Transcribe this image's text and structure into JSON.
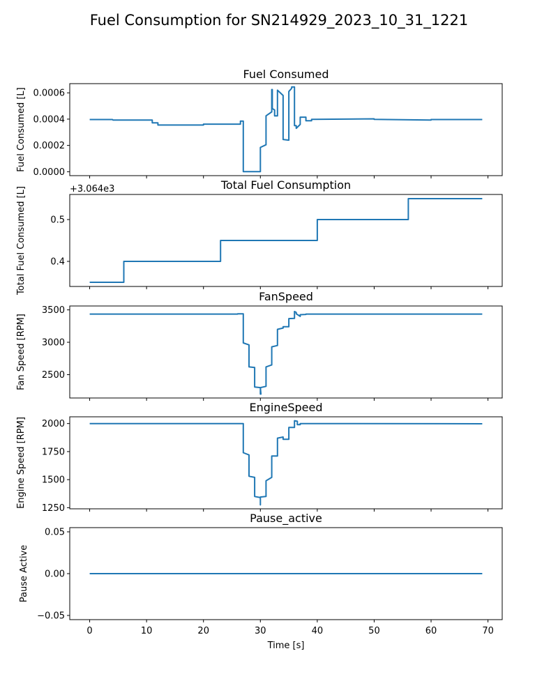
{
  "figure": {
    "title": "Fuel Consumption for SN214929_2023_10_31_1221",
    "xlabel": "Time [s]"
  },
  "chart_data": [
    {
      "type": "line",
      "title": "Fuel Consumed",
      "ylabel": "Fuel Consumed [L]",
      "xlim": [
        -3.5,
        72.5
      ],
      "ylim": [
        -3e-05,
        0.00067
      ],
      "yticks": [
        0.0,
        0.0002,
        0.0004,
        0.0006
      ],
      "ytick_labels": [
        "0.0000",
        "0.0002",
        "0.0004",
        "0.0006"
      ],
      "offset_label": "",
      "color": "#1f77b4",
      "x": [
        0,
        4,
        4.1,
        11,
        11,
        12,
        12,
        20,
        20,
        26.5,
        26.5,
        27,
        27,
        30,
        30,
        31,
        31,
        32,
        32,
        32.1,
        32.1,
        32.5,
        32.5,
        33,
        33,
        34,
        34,
        35,
        35,
        35.5,
        35.5,
        36,
        36,
        36.3,
        36.3,
        37,
        37,
        38,
        38,
        39,
        39,
        50,
        50,
        60,
        60,
        69
      ],
      "y": [
        0.000397,
        0.000397,
        0.000393,
        0.000393,
        0.000372,
        0.000372,
        0.000355,
        0.000355,
        0.000362,
        0.000362,
        0.000385,
        0.000385,
        0.0,
        0.0,
        0.000185,
        0.000205,
        0.000425,
        0.000455,
        0.000625,
        0.000625,
        0.00048,
        0.00047,
        0.000425,
        0.000425,
        0.00062,
        0.00058,
        0.000245,
        0.00024,
        0.00061,
        0.000635,
        0.000645,
        0.000645,
        0.00035,
        0.00035,
        0.00033,
        0.00036,
        0.000415,
        0.000415,
        0.000388,
        0.000388,
        0.000398,
        0.000402,
        0.000398,
        0.000393,
        0.000397,
        0.000397
      ]
    },
    {
      "type": "line",
      "title": "Total Fuel Consumption",
      "ylabel": "Total Fuel Consumed [L]",
      "xlim": [
        -3.5,
        72.5
      ],
      "ylim": [
        0.34,
        0.56
      ],
      "yticks": [
        0.4,
        0.5
      ],
      "ytick_labels": [
        "0.4",
        "0.5"
      ],
      "offset_label": "+3.064e3",
      "color": "#1f77b4",
      "x": [
        0,
        6,
        6,
        23,
        23,
        40,
        40,
        56,
        56,
        69
      ],
      "y": [
        0.35,
        0.35,
        0.4,
        0.4,
        0.45,
        0.45,
        0.5,
        0.5,
        0.55,
        0.55
      ]
    },
    {
      "type": "line",
      "title": "FanSpeed",
      "ylabel": "Fan Speed [RPM]",
      "xlim": [
        -3.5,
        72.5
      ],
      "ylim": [
        2140,
        3560
      ],
      "yticks": [
        2500,
        3000,
        3500
      ],
      "ytick_labels": [
        "2500",
        "3000",
        "3500"
      ],
      "offset_label": "",
      "color": "#1f77b4",
      "x": [
        0,
        26,
        26,
        27,
        27,
        28,
        28,
        29,
        29,
        30,
        30,
        30.1,
        30,
        31,
        31,
        32,
        32,
        33,
        33,
        34,
        34,
        35,
        35,
        36,
        36,
        36.3,
        36.3,
        37,
        37,
        38,
        38,
        69
      ],
      "y": [
        3435,
        3435,
        3440,
        3440,
        2990,
        2960,
        2620,
        2610,
        2310,
        2300,
        2200,
        2200,
        2300,
        2320,
        2620,
        2650,
        2930,
        2950,
        3200,
        3220,
        3240,
        3240,
        3365,
        3370,
        3475,
        3460,
        3440,
        3400,
        3425,
        3430,
        3435,
        3435
      ]
    },
    {
      "type": "line",
      "title": "EngineSpeed",
      "ylabel": "Engine Speed [RPM]",
      "xlim": [
        -3.5,
        72.5
      ],
      "ylim": [
        1240,
        2060
      ],
      "yticks": [
        1250,
        1500,
        1750,
        2000
      ],
      "ytick_labels": [
        "1250",
        "1500",
        "1750",
        "2000"
      ],
      "offset_label": "",
      "color": "#1f77b4",
      "x": [
        0,
        27,
        27,
        28,
        28,
        29,
        29,
        30,
        30,
        30,
        30,
        31,
        31,
        32,
        32,
        33,
        33,
        34,
        34,
        35,
        35,
        36,
        36,
        36.5,
        36.5,
        37,
        37,
        69
      ],
      "y": [
        2000,
        2000,
        1740,
        1720,
        1530,
        1520,
        1350,
        1340,
        1275,
        1340,
        1345,
        1350,
        1490,
        1520,
        1710,
        1710,
        1870,
        1880,
        1860,
        1860,
        1965,
        1965,
        2025,
        2020,
        1990,
        1990,
        2000,
        1998
      ]
    },
    {
      "type": "line",
      "title": "Pause_active",
      "ylabel": "Pause Active",
      "xlim": [
        -3.5,
        72.5
      ],
      "ylim": [
        -0.055,
        0.055
      ],
      "yticks": [
        -0.05,
        0.0,
        0.05
      ],
      "ytick_labels": [
        "−0.05",
        "0.00",
        "0.05"
      ],
      "offset_label": "",
      "color": "#1f77b4",
      "x": [
        0,
        69
      ],
      "y": [
        0,
        0
      ]
    }
  ],
  "xaxis": {
    "ticks": [
      0,
      10,
      20,
      30,
      40,
      50,
      60,
      70
    ],
    "tick_labels": [
      "0",
      "10",
      "20",
      "30",
      "40",
      "50",
      "60",
      "70"
    ]
  }
}
